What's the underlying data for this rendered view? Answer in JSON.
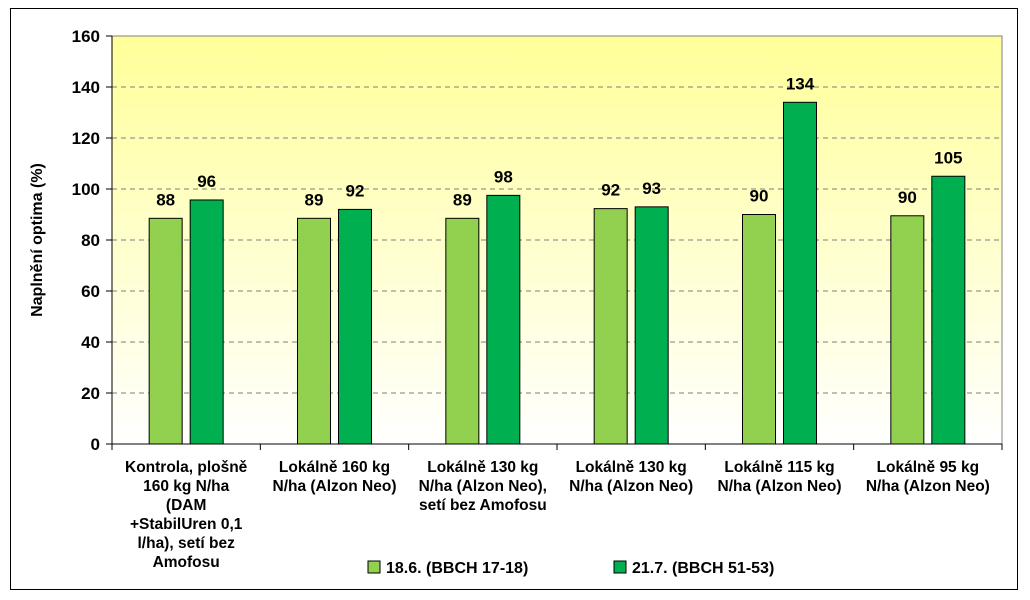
{
  "chart_data": {
    "type": "bar",
    "categories": [
      [
        "Kontrola, plošně",
        "160 kg N/ha",
        "(DAM",
        "+StabilUren 0,1",
        "l/ha), setí bez",
        "Amofosu"
      ],
      [
        "Lokálně 160 kg",
        "N/ha (Alzon Neo)"
      ],
      [
        "Lokálně 130 kg",
        "N/ha (Alzon Neo),",
        "setí bez Amofosu"
      ],
      [
        "Lokálně 130 kg",
        "N/ha (Alzon Neo)"
      ],
      [
        "Lokálně 115 kg",
        "N/ha (Alzon Neo)"
      ],
      [
        "Lokálně 95 kg",
        "N/ha (Alzon Neo)"
      ]
    ],
    "series": [
      {
        "name": "18.6. (BBCH 17-18)",
        "values": [
          88.5,
          88.5,
          88.5,
          92.3,
          90,
          89.5
        ],
        "labels": [
          "88",
          "89",
          "89",
          "92",
          "90",
          "90"
        ],
        "color": "#92d050"
      },
      {
        "name": "21.7. (BBCH 51-53)",
        "values": [
          95.7,
          92,
          97.5,
          93,
          134,
          105
        ],
        "labels": [
          "96",
          "92",
          "98",
          "93",
          "134",
          "105"
        ],
        "color": "#00b050"
      }
    ],
    "ylabel": "Naplnění optima (%)",
    "xlabel": "",
    "ylim": [
      0,
      160
    ],
    "yticks": [
      "0",
      "20",
      "40",
      "60",
      "80",
      "100",
      "120",
      "140",
      "160"
    ],
    "grid": true,
    "legend_position": "bottom",
    "plot_background": {
      "top": "#ffff99",
      "bottom": "#ffffff"
    }
  }
}
